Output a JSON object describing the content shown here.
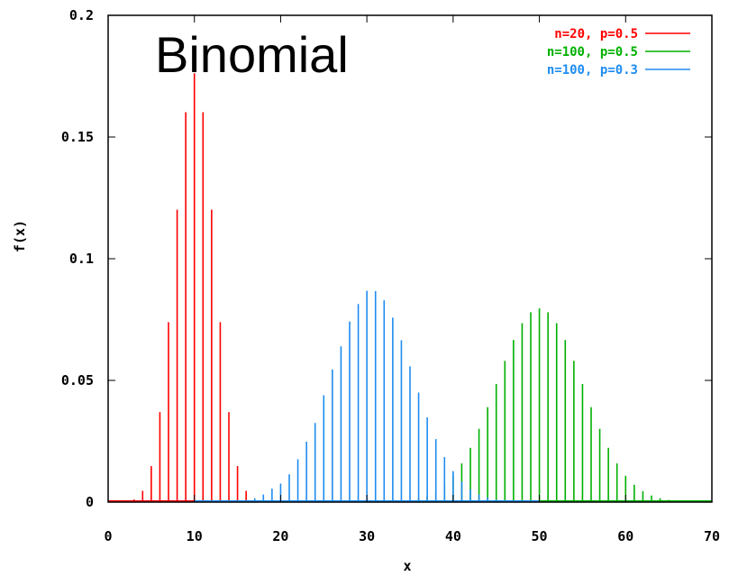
{
  "chart_data": {
    "type": "bar",
    "title": "Binomial",
    "xlabel": "x",
    "ylabel": "f(x)",
    "xlim": [
      0,
      70
    ],
    "ylim": [
      0,
      0.2
    ],
    "x_ticks": [
      "0",
      "10",
      "20",
      "30",
      "40",
      "50",
      "60",
      "70"
    ],
    "y_ticks": [
      "0",
      "0.05",
      "0.1",
      "0.15",
      "0.2"
    ],
    "legend_position": "top-right",
    "series": [
      {
        "name": "n=20, p=0.5",
        "color": "#ff0000",
        "x": [
          0,
          1,
          2,
          3,
          4,
          5,
          6,
          7,
          8,
          9,
          10,
          11,
          12,
          13,
          14,
          15,
          16,
          17,
          18,
          19,
          20
        ],
        "values": [
          1e-06,
          1.9e-05,
          0.000181,
          0.001087,
          0.004621,
          0.014786,
          0.036964,
          0.073929,
          0.120134,
          0.160179,
          0.176197,
          0.160179,
          0.120134,
          0.073929,
          0.036964,
          0.014786,
          0.004621,
          0.001087,
          0.000181,
          1.9e-05,
          1e-06
        ]
      },
      {
        "name": "n=100, p=0.5",
        "color": "#00b000",
        "x": [
          36,
          37,
          38,
          39,
          40,
          41,
          42,
          43,
          44,
          45,
          46,
          47,
          48,
          49,
          50,
          51,
          52,
          53,
          54,
          55,
          56,
          57,
          58,
          59,
          60,
          61,
          62,
          63,
          64,
          65,
          66,
          67,
          68,
          69,
          70
        ],
        "values": [
          0.0016,
          0.0027,
          0.0045,
          0.0071,
          0.0108,
          0.0159,
          0.0223,
          0.0301,
          0.039,
          0.0485,
          0.058,
          0.0666,
          0.0735,
          0.078,
          0.0796,
          0.078,
          0.0735,
          0.0666,
          0.058,
          0.0485,
          0.039,
          0.0301,
          0.0223,
          0.0159,
          0.0108,
          0.0071,
          0.0045,
          0.0027,
          0.0016,
          0.0009,
          0.0005,
          0.0002,
          0.0001,
          6e-05,
          2e-05
        ]
      },
      {
        "name": "n=100, p=0.3",
        "color": "#1e8cf0",
        "x": [
          10,
          11,
          12,
          13,
          14,
          15,
          16,
          17,
          18,
          19,
          20,
          21,
          22,
          23,
          24,
          25,
          26,
          27,
          28,
          29,
          30,
          31,
          32,
          33,
          34,
          35,
          36,
          37,
          38,
          39,
          40,
          41,
          42,
          43,
          44,
          45,
          46,
          47,
          48,
          49,
          50
        ],
        "values": [
          2e-06,
          6e-06,
          2e-05,
          6e-05,
          0.00015,
          0.00036,
          0.0008,
          0.0016,
          0.0031,
          0.0055,
          0.0076,
          0.0114,
          0.0176,
          0.0248,
          0.0325,
          0.0439,
          0.0545,
          0.064,
          0.0742,
          0.0814,
          0.0868,
          0.0867,
          0.0829,
          0.0758,
          0.0665,
          0.0558,
          0.045,
          0.0348,
          0.0259,
          0.0185,
          0.0127,
          0.0084,
          0.0053,
          0.0032,
          0.0019,
          0.001,
          0.0005,
          0.0003,
          0.0001,
          7e-05,
          4e-05
        ]
      }
    ]
  }
}
